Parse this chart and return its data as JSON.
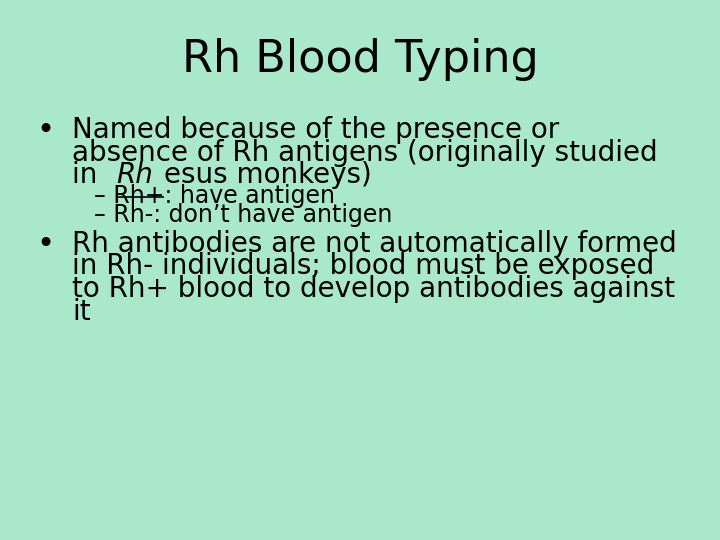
{
  "title": "Rh Blood Typing",
  "background_color": "#aae8cc",
  "text_color": "#000000",
  "title_fontsize": 32,
  "body_fontsize": 20,
  "sub_fontsize": 17,
  "bullet1_line1": "Named because of the presence or",
  "bullet1_line2": "absence of Rh antigens (originally studied",
  "bullet1_line3_plain": "in ",
  "bullet1_line3_rh": "Rh",
  "bullet1_line3_rest": "esus monkeys)",
  "sub1": "– Rh+: have antigen",
  "sub2": "– Rh-: don’t have antigen",
  "bullet2_line1": "Rh antibodies are not automatically formed",
  "bullet2_line2": "in Rh- individuals; blood must be exposed",
  "bullet2_line3": "to Rh+ blood to develop antibodies against",
  "bullet2_line4": "it"
}
